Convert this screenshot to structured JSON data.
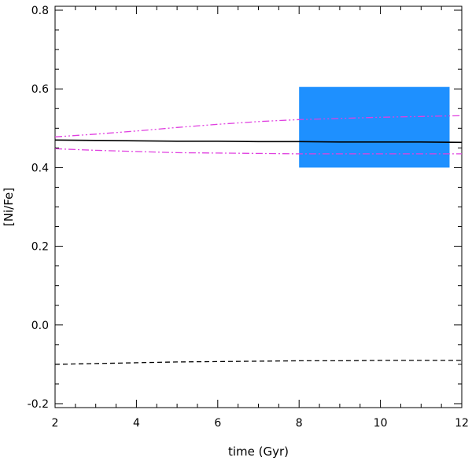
{
  "chart_data": {
    "type": "line",
    "title": "",
    "xlabel": "time (Gyr)",
    "ylabel": "[Ni/Fe]",
    "xlim": [
      2,
      12
    ],
    "ylim": [
      -0.21,
      0.81
    ],
    "xticks": [
      2,
      4,
      6,
      8,
      10,
      12
    ],
    "yticks": [
      -0.2,
      0.0,
      0.2,
      0.4,
      0.6,
      0.8
    ],
    "xtick_labels": [
      "2",
      "4",
      "6",
      "8",
      "10",
      "12"
    ],
    "ytick_labels": [
      "-0.2",
      "0.0",
      "0.2",
      "0.4",
      "0.6",
      "0.8"
    ],
    "grid": false,
    "legend": "none",
    "shaded_region": {
      "x": [
        8.0,
        11.7
      ],
      "y": [
        0.4,
        0.605
      ],
      "color": "#1e90ff"
    },
    "series": [
      {
        "style": "solid",
        "color": "#000000",
        "x": [
          2,
          3,
          4,
          5,
          6,
          7,
          8,
          9,
          10,
          11,
          12
        ],
        "y": [
          0.47,
          0.469,
          0.468,
          0.467,
          0.467,
          0.466,
          0.466,
          0.465,
          0.465,
          0.465,
          0.464
        ]
      },
      {
        "style": "dashed",
        "color": "#000000",
        "x": [
          2,
          3,
          4,
          5,
          6,
          7,
          8,
          9,
          10,
          11,
          12
        ],
        "y": [
          -0.1,
          -0.098,
          -0.096,
          -0.094,
          -0.093,
          -0.092,
          -0.091,
          -0.091,
          -0.09,
          -0.09,
          -0.09
        ]
      },
      {
        "style": "dash-dot-dot",
        "color": "#e040e0",
        "x": [
          2,
          3,
          4,
          5,
          6,
          7,
          8,
          9,
          10,
          11,
          12
        ],
        "y": [
          0.478,
          0.485,
          0.493,
          0.502,
          0.51,
          0.517,
          0.522,
          0.525,
          0.528,
          0.53,
          0.532
        ]
      },
      {
        "style": "dash-dot",
        "color": "#e040e0",
        "x": [
          2,
          3,
          4,
          5,
          6,
          7,
          8,
          9,
          10,
          11,
          12
        ],
        "y": [
          0.448,
          0.444,
          0.441,
          0.438,
          0.437,
          0.436,
          0.435,
          0.435,
          0.435,
          0.435,
          0.435
        ]
      }
    ]
  }
}
